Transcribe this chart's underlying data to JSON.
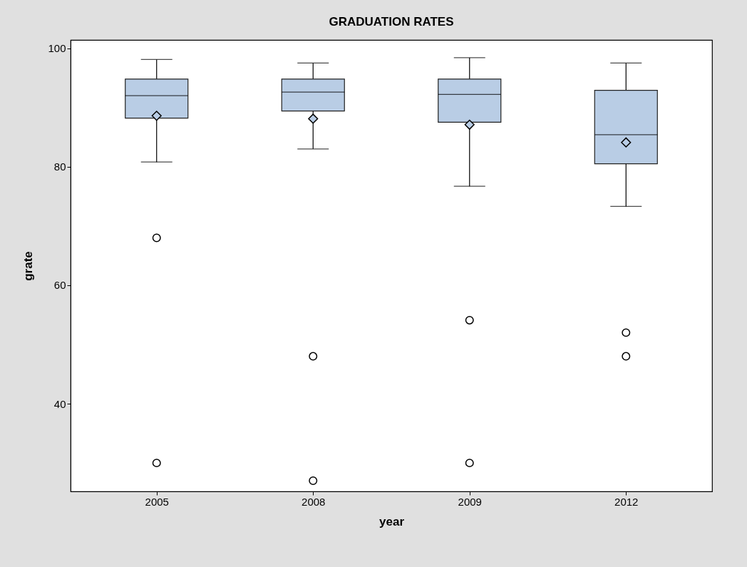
{
  "chart_data": {
    "type": "box",
    "title": "GRADUATION RATES",
    "xlabel": "year",
    "ylabel": "grate",
    "categories": [
      "2005",
      "2008",
      "2009",
      "2012"
    ],
    "color": "#b9cde5",
    "boxes": [
      {
        "low": 80.8,
        "q1": 88.2,
        "median": 92.0,
        "q3": 94.8,
        "high": 98.1,
        "mean": 88.6,
        "outliers": [
          68.0,
          30.0
        ]
      },
      {
        "low": 83.0,
        "q1": 89.4,
        "median": 92.6,
        "q3": 94.8,
        "high": 97.5,
        "mean": 88.1,
        "outliers": [
          48.0,
          27.0
        ]
      },
      {
        "low": 76.7,
        "q1": 87.5,
        "median": 92.2,
        "q3": 94.8,
        "high": 98.4,
        "mean": 87.1,
        "outliers": [
          54.1,
          30.0
        ]
      },
      {
        "low": 73.3,
        "q1": 80.5,
        "median": 85.4,
        "q3": 92.9,
        "high": 97.5,
        "mean": 84.1,
        "outliers": [
          52.0,
          48.0
        ]
      }
    ],
    "ylim": [
      25.2,
      101.4
    ],
    "yticks": [
      40,
      60,
      80,
      100
    ],
    "grid": false,
    "marker": "diamond"
  }
}
